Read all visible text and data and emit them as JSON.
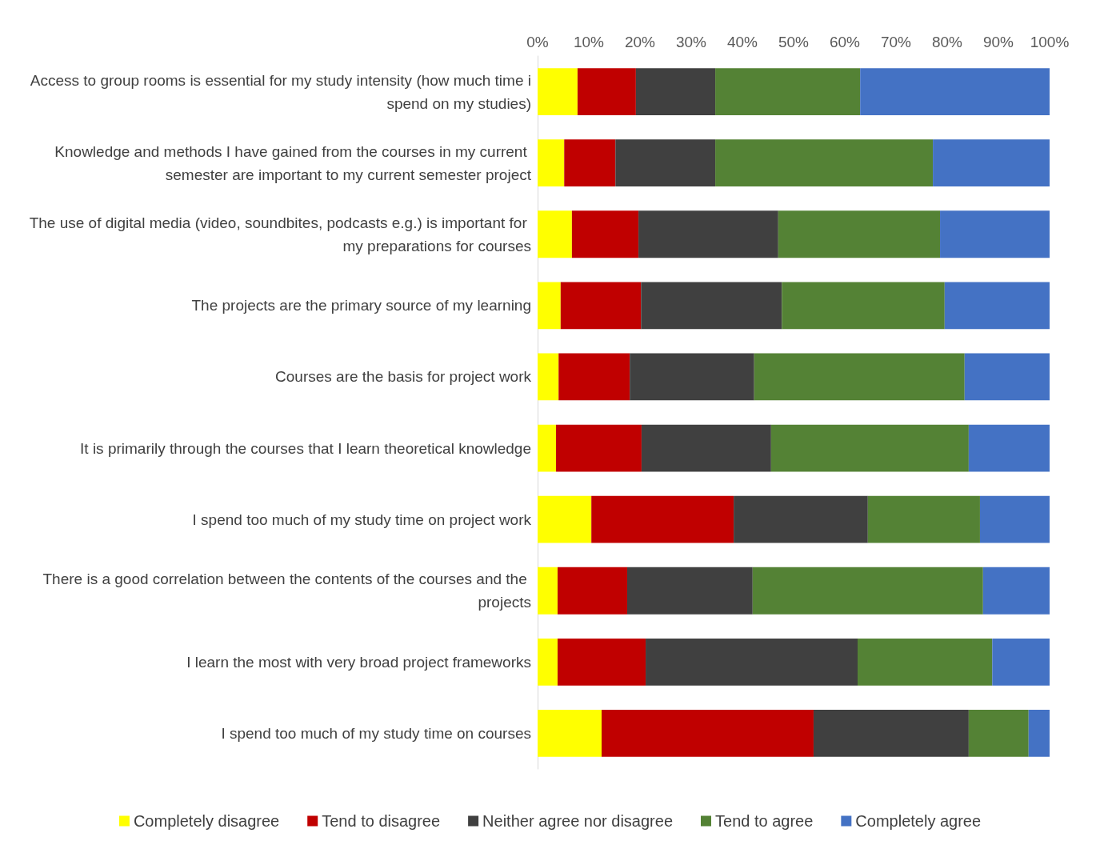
{
  "chart_data": {
    "type": "bar",
    "orientation": "horizontal",
    "stacked": true,
    "legend": "bottom",
    "grid": false,
    "categories": [
      "Access to group rooms is essential for my study intensity (how much time i spend on my studies)",
      "Knowledge and methods I have gained from the courses in my current semester are important to my current semester project",
      "The use of digital media (video, soundbites, podcasts e.g.) is important for my preparations for courses",
      "The projects are the primary source of my learning",
      "Courses are the basis for project work",
      "It is primarily through the courses that I learn theoretical knowledge",
      "I spend too much of my study time on project work",
      "There is a good correlation between the contents of the courses and the projects",
      "I learn the most with very broad project frameworks",
      "I spend too much of my study time on courses"
    ],
    "xlim": [
      0,
      100
    ],
    "xticks": [
      {
        "value": 0,
        "label": "0%"
      },
      {
        "value": 10,
        "label": "10%"
      },
      {
        "value": 20,
        "label": "20%"
      },
      {
        "value": 30,
        "label": "30%"
      },
      {
        "value": 40,
        "label": "40%"
      },
      {
        "value": 50,
        "label": "50%"
      },
      {
        "value": 60,
        "label": "60%"
      },
      {
        "value": 70,
        "label": "70%"
      },
      {
        "value": 80,
        "label": "80%"
      },
      {
        "value": 90,
        "label": "90%"
      },
      {
        "value": 100,
        "label": "100%"
      }
    ],
    "series": [
      {
        "name": "Completely disagree",
        "color": "#ffff00",
        "values": [
          7.8,
          5.2,
          6.7,
          4.5,
          4.1,
          3.6,
          10.5,
          3.9,
          3.9,
          12.5
        ]
      },
      {
        "name": "Tend to disagree",
        "color": "#c00000",
        "values": [
          11.4,
          10.0,
          13.0,
          15.7,
          13.9,
          16.7,
          27.8,
          13.6,
          17.2,
          41.4
        ]
      },
      {
        "name": "Neither agree nor disagree",
        "color": "#404040",
        "values": [
          15.5,
          19.5,
          27.3,
          27.5,
          24.3,
          25.3,
          26.2,
          24.5,
          41.4,
          30.3
        ]
      },
      {
        "name": "Tend to agree",
        "color": "#548235",
        "values": [
          28.3,
          42.5,
          31.6,
          31.8,
          41.1,
          38.6,
          21.9,
          45.0,
          26.3,
          11.7
        ]
      },
      {
        "name": "Completely agree",
        "color": "#4472c4",
        "values": [
          37.0,
          22.8,
          21.4,
          20.5,
          16.6,
          15.8,
          13.6,
          13.0,
          11.2,
          4.1
        ]
      }
    ]
  }
}
